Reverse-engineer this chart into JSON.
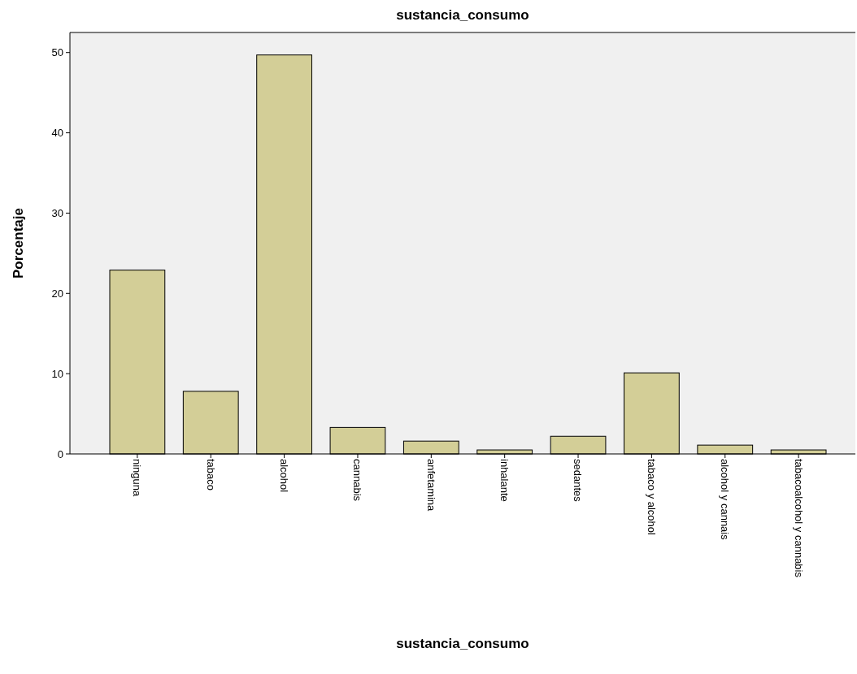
{
  "chart_data": {
    "type": "bar",
    "title": "sustancia_consumo",
    "xlabel": "sustancia_consumo",
    "ylabel": "Porcentaje",
    "categories": [
      "ninguna",
      "tabaco",
      "alcohol",
      "cannabis",
      "anfetamina",
      "inhalante",
      "sedantes",
      "tabaco y alcohol",
      "alcohol y cannais",
      "tabacoalcohol y cannabis"
    ],
    "values": [
      22.9,
      7.8,
      49.7,
      3.3,
      1.6,
      0.5,
      2.2,
      10.1,
      1.1,
      0.5
    ],
    "color": "#d3ce97",
    "ylim": [
      0,
      52.5
    ],
    "yticks": [
      0,
      10,
      20,
      30,
      40,
      50
    ],
    "grid": false
  }
}
